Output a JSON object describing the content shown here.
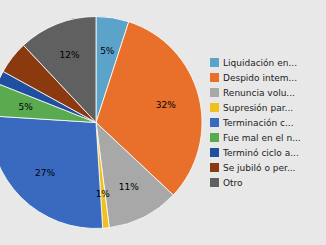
{
  "chart_data": {
    "type": "pie",
    "categories": [
      "Liquidación en...",
      "Despido intem...",
      "Renuncia volu...",
      "Supresión par...",
      "Terminación c...",
      "Fue mal en el n...",
      "Terminó ciclo a...",
      "Se jubiló o per...",
      "Otro"
    ],
    "values": [
      5,
      32,
      11,
      1,
      27,
      5,
      2,
      5,
      12
    ],
    "value_labels": [
      "5%",
      "32%",
      "11%",
      "1%",
      "27%",
      "5%",
      null,
      null,
      "12%"
    ],
    "colors": [
      "#5ba3c9",
      "#e8702a",
      "#a8a8a8",
      "#f0c020",
      "#3a6abf",
      "#5aaa50",
      "#1f4f9e",
      "#8b3a10",
      "#606060"
    ],
    "data_labels": true,
    "legend": "right"
  }
}
